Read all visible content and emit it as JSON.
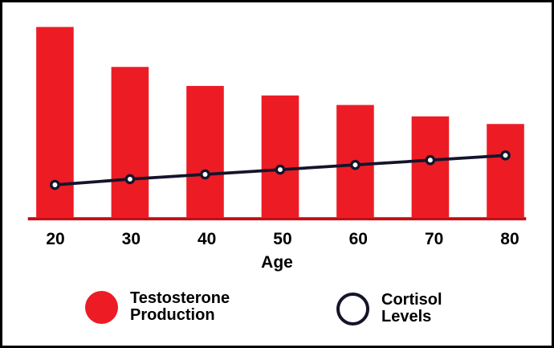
{
  "chart_data": {
    "type": "bar",
    "categories": [
      "20",
      "30",
      "40",
      "50",
      "60",
      "70",
      "80"
    ],
    "series": [
      {
        "name": "Testosterone Production",
        "type": "bar",
        "color": "#ED1C24",
        "values": [
          100,
          79,
          69,
          64,
          59,
          53,
          49
        ]
      },
      {
        "name": "Cortisol Levels",
        "type": "line",
        "color": "#14142B",
        "marker": "open-circle",
        "marker_fill": "#FFFFFF",
        "values": [
          17,
          20,
          22.5,
          25,
          27.5,
          30,
          32.5
        ]
      }
    ],
    "xlabel": "Age",
    "ylim": [
      0,
      100
    ],
    "grid": false,
    "axis_line_color": "#C10E15",
    "legend_position": "bottom"
  },
  "axis": {
    "title": "Age",
    "tick_labels": [
      "20",
      "30",
      "40",
      "50",
      "60",
      "70",
      "80"
    ]
  },
  "legend": {
    "items": [
      {
        "id": "testosterone",
        "swatch": "filled-circle",
        "color": "#ED1C24",
        "lines": [
          "Testosterone",
          "Production"
        ]
      },
      {
        "id": "cortisol",
        "swatch": "open-circle",
        "color": "#14142B",
        "lines": [
          "Cortisol",
          "Levels"
        ]
      }
    ]
  },
  "colors": {
    "background": "#FFFFFF",
    "frame_border": "#000000",
    "text": "#000000"
  }
}
